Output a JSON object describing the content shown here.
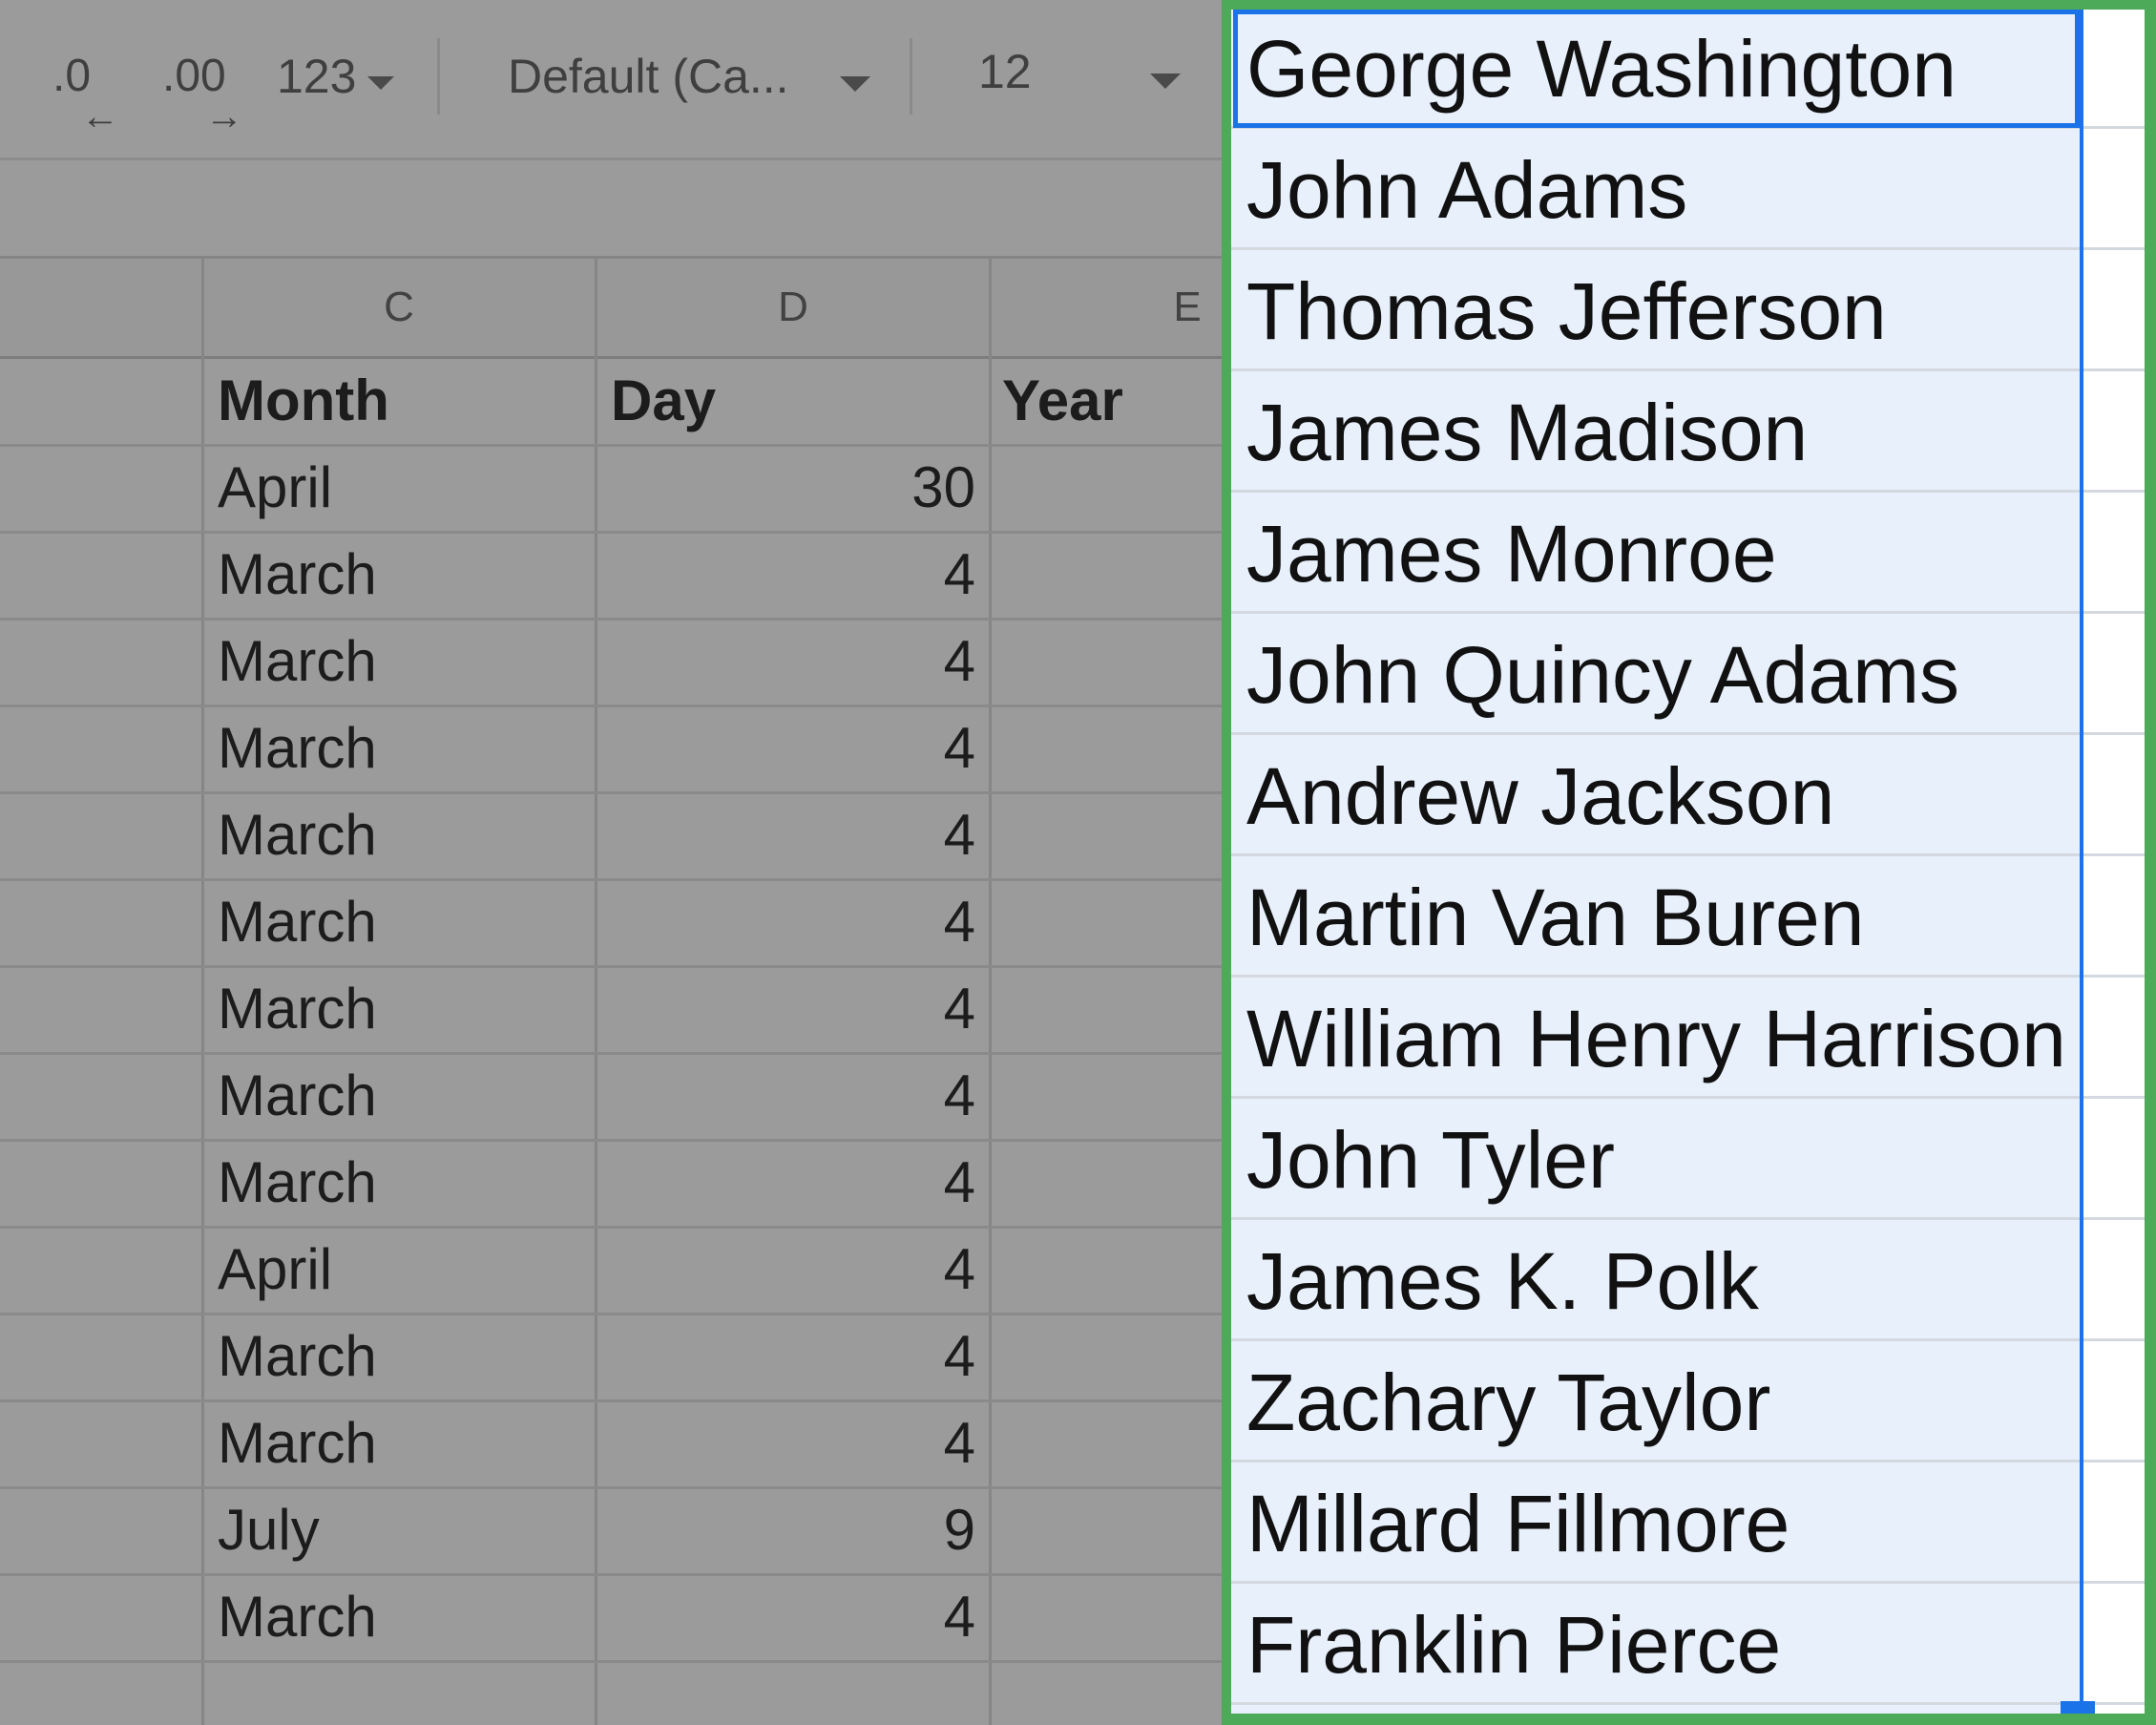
{
  "toolbar": {
    "decrease_decimal_label": ".0",
    "increase_decimal_label": ".00",
    "number_format_label": "123",
    "font_family_value": "Default (Ca...",
    "font_size_value": "12",
    "left_arrow": "←",
    "right_arrow": "→"
  },
  "columns": [
    "C",
    "D",
    "E"
  ],
  "table": {
    "headers": {
      "month": "Month",
      "day": "Day",
      "year": "Year"
    },
    "rows": [
      {
        "month": "April",
        "day": "30"
      },
      {
        "month": "March",
        "day": "4"
      },
      {
        "month": "March",
        "day": "4"
      },
      {
        "month": "March",
        "day": "4"
      },
      {
        "month": "March",
        "day": "4"
      },
      {
        "month": "March",
        "day": "4"
      },
      {
        "month": "March",
        "day": "4"
      },
      {
        "month": "March",
        "day": "4"
      },
      {
        "month": "March",
        "day": "4"
      },
      {
        "month": "April",
        "day": "4"
      },
      {
        "month": "March",
        "day": "4"
      },
      {
        "month": "March",
        "day": "4"
      },
      {
        "month": "July",
        "day": "9"
      },
      {
        "month": "March",
        "day": "4"
      }
    ]
  },
  "presidents": [
    "George Washington",
    "John Adams",
    "Thomas Jefferson",
    "James Madison",
    "James Monroe",
    "John Quincy Adams",
    "Andrew Jackson",
    "Martin Van Buren",
    "William Henry Harrison",
    "John Tyler",
    "James K. Polk",
    "Zachary Taylor",
    "Millard Fillmore",
    "Franklin Pierce"
  ],
  "colors": {
    "highlight_border": "#4caa58",
    "selection_blue": "#1a73e8",
    "selection_fill": "#e8f0fc"
  }
}
